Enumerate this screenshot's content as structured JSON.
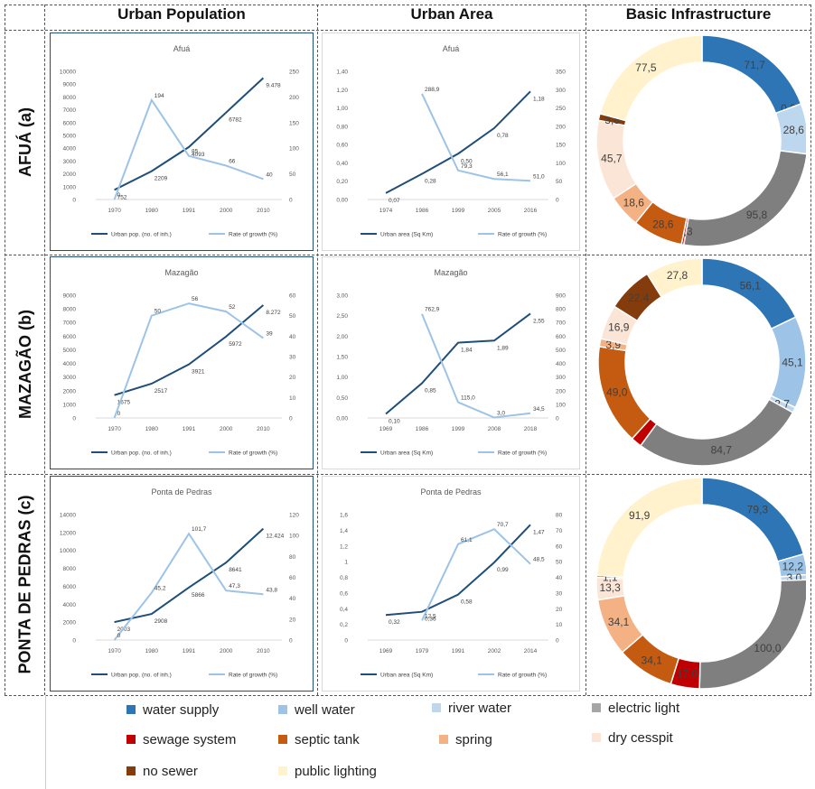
{
  "column_headers": [
    "Urban Population",
    "Urban Area",
    "Basic Infrastructure"
  ],
  "row_labels": [
    "AFUÁ (a)",
    "MAZAGÃO (b)",
    "PONTA DE PEDRAS (c)"
  ],
  "colors": {
    "urban_line": "#1f4e79",
    "rate_line": "#9dc3e6",
    "water_supply": "#2e75b6",
    "well_water": "#9dc3e6",
    "river_water": "#bdd7ee",
    "electric_light": "#7f7f7f",
    "sewage_system": "#c00000",
    "septic_tank": "#c55a11",
    "spring": "#f4b183",
    "dry_cesspit": "#fbe5d6",
    "no_sewer": "#843c0c",
    "public_lighting": "#fff2cc"
  },
  "legend": [
    {
      "label": "water supply",
      "color": "#2e75b6"
    },
    {
      "label": "well water",
      "color": "#9dc3e6"
    },
    {
      "label": "river water",
      "color": "#bdd7ee"
    },
    {
      "label": "electric light",
      "color": "#a6a6a6"
    },
    {
      "label": "sewage system",
      "color": "#c00000"
    },
    {
      "label": "septic tank",
      "color": "#c55a11"
    },
    {
      "label": "spring",
      "color": "#f4b183"
    },
    {
      "label": "dry cesspit",
      "color": "#fbe5d6"
    },
    {
      "label": "no sewer",
      "color": "#843c0c"
    },
    {
      "label": "public lighting",
      "color": "#fff2cc"
    }
  ],
  "chart_data": [
    {
      "type": "line",
      "panel": "pop",
      "title": "Afuá",
      "categories": [
        "1970",
        "1980",
        "1991",
        "2000",
        "2010"
      ],
      "series": [
        {
          "name": "Urban pop. (no. of inh.)",
          "axis": "left",
          "values": [
            752,
            2209,
            4093,
            6782,
            9478
          ],
          "labels": [
            "752",
            "2209",
            "4093",
            "6782",
            "9.478"
          ]
        },
        {
          "name": "Rate of growth (%)",
          "axis": "right",
          "values": [
            0,
            194,
            85,
            66,
            40
          ],
          "labels": [
            "0",
            "194",
            "85",
            "66",
            "40"
          ]
        }
      ],
      "left_ticks": [
        "0",
        "1000",
        "2000",
        "3000",
        "4000",
        "5000",
        "6000",
        "7000",
        "8000",
        "9000",
        "10000"
      ],
      "left_max": 10000,
      "right_ticks": [
        "0",
        "50",
        "100",
        "150",
        "200",
        "250"
      ],
      "right_max": 250
    },
    {
      "type": "line",
      "panel": "area",
      "title": "Afuá",
      "categories": [
        "1974",
        "1986",
        "1999",
        "2005",
        "2016"
      ],
      "series": [
        {
          "name": "Urban area (Sq Km)",
          "axis": "left",
          "values": [
            0.07,
            0.28,
            0.5,
            0.78,
            1.18
          ],
          "labels": [
            "0,07",
            "0,28",
            "0,50",
            "0,78",
            "1,18"
          ]
        },
        {
          "name": "Rate of growth (%)",
          "axis": "right",
          "values": [
            null,
            288.9,
            79.3,
            56.1,
            51.0
          ],
          "labels": [
            "",
            "288,9",
            "79,3",
            "56,1",
            "51,0"
          ]
        }
      ],
      "left_ticks": [
        "0,00",
        "0,20",
        "0,40",
        "0,60",
        "0,80",
        "1,00",
        "1,20",
        "1,40"
      ],
      "left_max": 1.4,
      "right_ticks": [
        "0",
        "50",
        "100",
        "150",
        "200",
        "250",
        "300",
        "350"
      ],
      "right_max": 350
    },
    {
      "type": "pie",
      "panel": "infra",
      "subtype": "donut",
      "slices": [
        {
          "category": "water supply",
          "value": 71.7,
          "label": "71,7"
        },
        {
          "category": "well water",
          "value": 0.0,
          "label": "0,0"
        },
        {
          "category": "river water",
          "value": 28.6,
          "label": "28,6"
        },
        {
          "category": "electric light",
          "value": 95.8,
          "label": "95,8"
        },
        {
          "category": "sewage system",
          "value": 1.3,
          "label": "1,3"
        },
        {
          "category": "septic tank",
          "value": 28.6,
          "label": "28,6"
        },
        {
          "category": "spring",
          "value": 18.6,
          "label": "18,6"
        },
        {
          "category": "dry cesspit",
          "value": 45.7,
          "label": "45,7"
        },
        {
          "category": "no sewer",
          "value": 3.8,
          "label": "3,8"
        },
        {
          "category": "public lighting",
          "value": 77.5,
          "label": "77,5"
        }
      ]
    },
    {
      "type": "line",
      "panel": "pop",
      "title": "Mazagão",
      "categories": [
        "1970",
        "1980",
        "1991",
        "2000",
        "2010"
      ],
      "series": [
        {
          "name": "Urban pop. (no. of inh.)",
          "axis": "left",
          "values": [
            1675,
            2517,
            3921,
            5972,
            8272
          ],
          "labels": [
            "1675",
            "2517",
            "3921",
            "5972",
            "8.272"
          ]
        },
        {
          "name": "Rate of growth (%)",
          "axis": "right",
          "values": [
            0,
            50,
            56,
            52,
            39
          ],
          "labels": [
            "0",
            "50",
            "56",
            "52",
            "39"
          ]
        }
      ],
      "left_ticks": [
        "0",
        "1000",
        "2000",
        "3000",
        "4000",
        "5000",
        "6000",
        "7000",
        "8000",
        "9000"
      ],
      "left_max": 9000,
      "right_ticks": [
        "0",
        "10",
        "20",
        "30",
        "40",
        "50",
        "60"
      ],
      "right_max": 60
    },
    {
      "type": "line",
      "panel": "area",
      "title": "Mazagão",
      "categories": [
        "1969",
        "1986",
        "1999",
        "2008",
        "2018"
      ],
      "series": [
        {
          "name": "Urban area (Sq Km)",
          "axis": "left",
          "values": [
            0.1,
            0.85,
            1.84,
            1.89,
            2.55
          ],
          "labels": [
            "0,10",
            "0,85",
            "1,84",
            "1,89",
            "2,55"
          ]
        },
        {
          "name": "Rate of growth (%)",
          "axis": "right",
          "values": [
            null,
            762.9,
            115.0,
            3.0,
            34.5
          ],
          "labels": [
            "",
            "762,9",
            "115,0",
            "3,0",
            "34,5"
          ]
        }
      ],
      "left_ticks": [
        "0,00",
        "0,50",
        "1,00",
        "1,50",
        "2,00",
        "2,50",
        "3,00"
      ],
      "left_max": 3.0,
      "right_ticks": [
        "0",
        "100",
        "200",
        "300",
        "400",
        "500",
        "600",
        "700",
        "800",
        "900"
      ],
      "right_max": 900
    },
    {
      "type": "pie",
      "panel": "infra",
      "subtype": "donut",
      "slices": [
        {
          "category": "water supply",
          "value": 56.1,
          "label": "56,1"
        },
        {
          "category": "well water",
          "value": 45.1,
          "label": "45,1"
        },
        {
          "category": "river water",
          "value": 2.7,
          "label": "2,7"
        },
        {
          "category": "electric light",
          "value": 84.7,
          "label": "84,7"
        },
        {
          "category": "sewage system",
          "value": 5.3,
          "label": ""
        },
        {
          "category": "septic tank",
          "value": 49.0,
          "label": "49,0"
        },
        {
          "category": "spring",
          "value": 3.9,
          "label": "3,9"
        },
        {
          "category": "dry cesspit",
          "value": 16.9,
          "label": "16,9"
        },
        {
          "category": "no sewer",
          "value": 22.4,
          "label": "22,4"
        },
        {
          "category": "public lighting",
          "value": 27.8,
          "label": "27,8"
        }
      ]
    },
    {
      "type": "line",
      "panel": "pop",
      "title": "Ponta de Pedras",
      "categories": [
        "1970",
        "1980",
        "1991",
        "2000",
        "2010"
      ],
      "series": [
        {
          "name": "Urban pop. (no. of inh.)",
          "axis": "left",
          "values": [
            2003,
            2908,
            5866,
            8641,
            12424
          ],
          "labels": [
            "2003",
            "2908",
            "5866",
            "8641",
            "12.424"
          ]
        },
        {
          "name": "Rate of growth (%)",
          "axis": "right",
          "values": [
            0,
            45.2,
            101.7,
            47.3,
            43.8
          ],
          "labels": [
            "0",
            "45,2",
            "101,7",
            "47,3",
            "43,8"
          ]
        }
      ],
      "left_ticks": [
        "0",
        "2000",
        "4000",
        "6000",
        "8000",
        "10000",
        "12000",
        "14000"
      ],
      "left_max": 14000,
      "right_ticks": [
        "0",
        "20",
        "40",
        "60",
        "80",
        "100",
        "120"
      ],
      "right_max": 120
    },
    {
      "type": "line",
      "panel": "area",
      "title": "Ponta de Pedras",
      "categories": [
        "1969",
        "1979",
        "1991",
        "2002",
        "2014"
      ],
      "series": [
        {
          "name": "Urban area (Sq Km)",
          "axis": "left",
          "values": [
            0.32,
            0.36,
            0.58,
            0.99,
            1.47
          ],
          "labels": [
            "0,32",
            "0,36",
            "0,58",
            "0,99",
            "1,47"
          ]
        },
        {
          "name": "Rate of growth (%)",
          "axis": "right",
          "values": [
            null,
            12.5,
            61.1,
            70.7,
            48.5
          ],
          "labels": [
            "",
            "12,5",
            "61,1",
            "70,7",
            "48,5"
          ]
        }
      ],
      "left_ticks": [
        "0",
        "0,2",
        "0,4",
        "0,6",
        "0,8",
        "1",
        "1,2",
        "1,4",
        "1,6"
      ],
      "left_max": 1.6,
      "right_ticks": [
        "0",
        "10",
        "20",
        "30",
        "40",
        "50",
        "60",
        "70",
        "80"
      ],
      "right_max": 80
    },
    {
      "type": "pie",
      "panel": "infra",
      "subtype": "donut",
      "slices": [
        {
          "category": "water supply",
          "value": 79.3,
          "label": "79,3"
        },
        {
          "category": "well water",
          "value": 12.2,
          "label": "12,2"
        },
        {
          "category": "river water",
          "value": 3.0,
          "label": "3,0"
        },
        {
          "category": "electric light",
          "value": 100.0,
          "label": "100,0"
        },
        {
          "category": "sewage system",
          "value": 17.0,
          "label": "17,0"
        },
        {
          "category": "septic tank",
          "value": 34.1,
          "label": "34,1"
        },
        {
          "category": "spring",
          "value": 34.1,
          "label": "34,1"
        },
        {
          "category": "dry cesspit",
          "value": 13.3,
          "label": "13,3"
        },
        {
          "category": "no sewer",
          "value": 1.1,
          "label": "1,1"
        },
        {
          "category": "public lighting",
          "value": 91.9,
          "label": "91,9"
        }
      ]
    }
  ]
}
